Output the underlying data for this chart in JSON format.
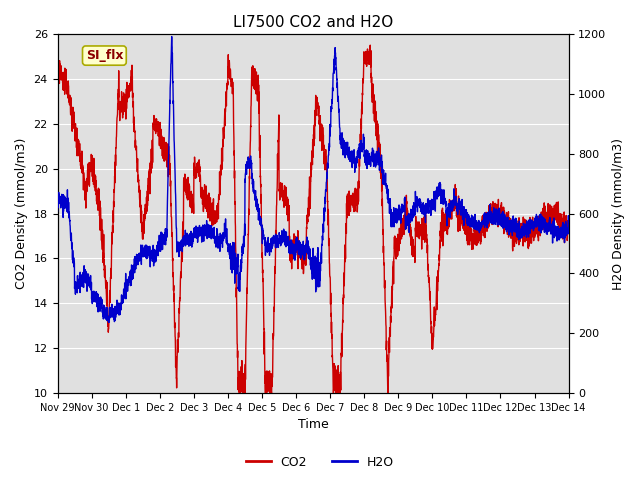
{
  "title": "LI7500 CO2 and H2O",
  "xlabel": "Time",
  "ylabel_left": "CO2 Density (mmol/m3)",
  "ylabel_right": "H2O Density (mmol/m3)",
  "ylim_left": [
    10,
    26
  ],
  "ylim_right": [
    0,
    1200
  ],
  "yticks_left": [
    10,
    12,
    14,
    16,
    18,
    20,
    22,
    24,
    26
  ],
  "yticks_right": [
    0,
    200,
    400,
    600,
    800,
    1000,
    1200
  ],
  "co2_color": "#cc0000",
  "h2o_color": "#0000cc",
  "legend_co2": "CO2",
  "legend_h2o": "H2O",
  "annotation_text": "SI_flx",
  "bg_color": "#e0e0e0",
  "title_fontsize": 11,
  "axis_fontsize": 9,
  "tick_fontsize": 8,
  "linewidth": 1.0
}
